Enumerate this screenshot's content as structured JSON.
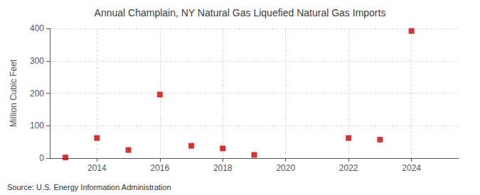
{
  "chart_data": {
    "type": "scatter",
    "title": "Annual Champlain, NY Natural Gas Liquefied Natural Gas Imports",
    "ylabel": "Million Cubic Feet",
    "annotation": "Source: U.S. Energy Information Administration",
    "x": [
      2013,
      2014,
      2015,
      2016,
      2017,
      2018,
      2019,
      2022,
      2023,
      2024
    ],
    "values": [
      2,
      62,
      25,
      196,
      38,
      30,
      10,
      62,
      57,
      392
    ],
    "xlim": [
      2012.5,
      2025.5
    ],
    "ylim": [
      0,
      400
    ],
    "xticks": [
      2014,
      2016,
      2018,
      2020,
      2022,
      2024
    ],
    "yticks": [
      0,
      100,
      200,
      300,
      400
    ],
    "color": "#cc0000",
    "marker": "square",
    "grid": true
  }
}
